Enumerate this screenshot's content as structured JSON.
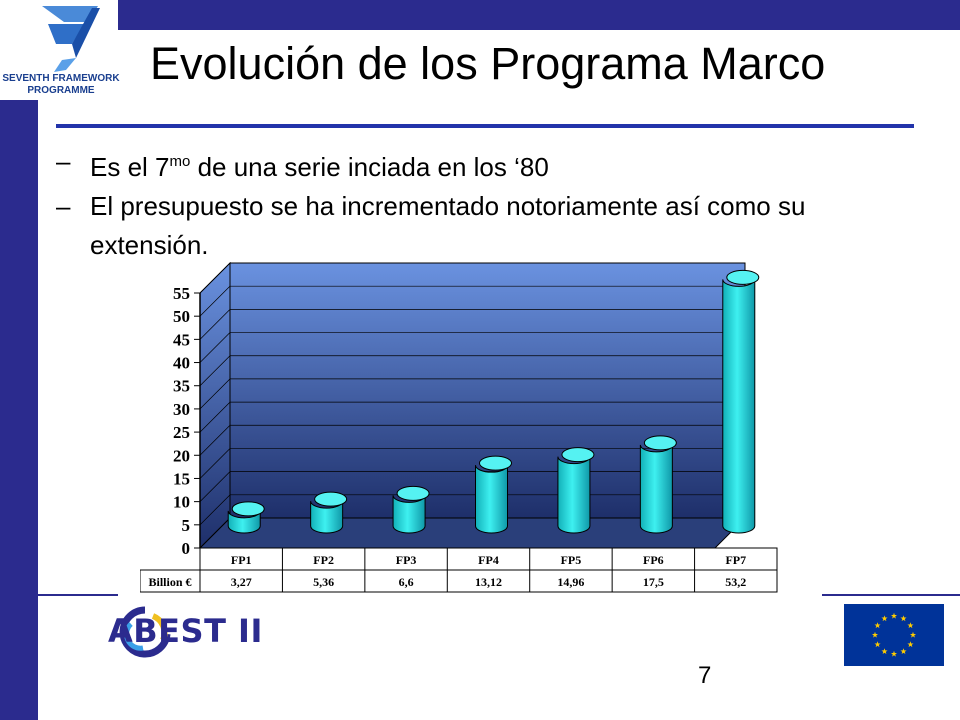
{
  "header": {
    "logo_line1": "SEVENTH FRAMEWORK",
    "logo_line2": "PROGRAMME",
    "title": "Evolución de los Programa Marco"
  },
  "bullets": [
    {
      "dash": "–",
      "pre": "Es el 7",
      "sup": "mo",
      "post": " de una serie inciada en los ‘80"
    },
    {
      "dash": "–",
      "text": "El presupuesto se ha incrementado notoriamente así como su extensión."
    }
  ],
  "chart_data": {
    "type": "bar",
    "categories": [
      "FP1",
      "FP2",
      "FP3",
      "FP4",
      "FP5",
      "FP6",
      "FP7"
    ],
    "series": [
      {
        "name": "Billion €",
        "values": [
          3.27,
          5.36,
          6.6,
          13.12,
          14.96,
          17.5,
          53.2
        ]
      }
    ],
    "value_labels": [
      "3,27",
      "5,36",
      "6,6",
      "13,12",
      "14,96",
      "17,5",
      "53,2"
    ],
    "table_row_label": "Billion €",
    "yticks": [
      "0",
      "5",
      "10",
      "15",
      "20",
      "25",
      "30",
      "35",
      "40",
      "45",
      "50",
      "55"
    ],
    "ylim": [
      0,
      55
    ],
    "grid": true,
    "colors": {
      "bar": "#22d8d8",
      "bar_top": "#55f2f2",
      "wall_top": "#6a92e0",
      "wall_bottom": "#1e2f6a",
      "floor": "#2a3f7a"
    }
  },
  "footer": {
    "org_logo_text": "ABEST II",
    "page_number": "7"
  },
  "colors": {
    "brand_blue": "#2b2b8e",
    "rule_blue": "#2233aa",
    "eu_blue": "#003399",
    "eu_gold": "#ffcc00"
  }
}
